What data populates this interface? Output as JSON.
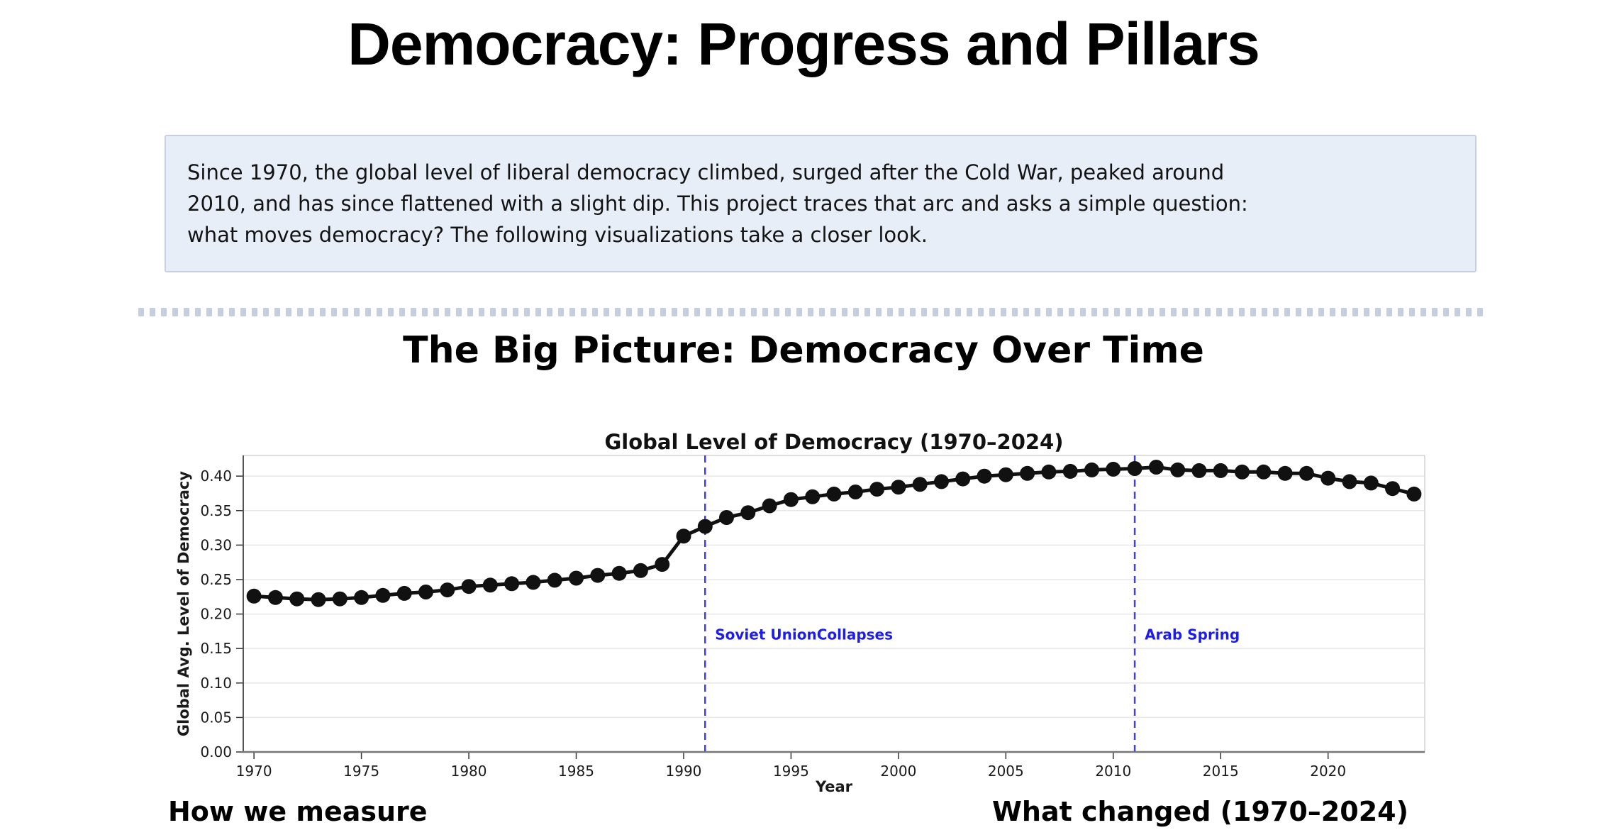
{
  "page": {
    "title": "Democracy: Progress and Pillars"
  },
  "intro": {
    "lines": [
      "Since 1970, the global level of liberal democracy climbed, surged after the Cold War, peaked around",
      "2010, and has since flattened with a slight dip. This project traces that arc and asks a simple question:",
      "what moves democracy? The following visualizations take a closer look."
    ]
  },
  "section": {
    "title": "The Big Picture: Democracy Over Time"
  },
  "chart_data": {
    "type": "line",
    "title": "Global Level of Democracy (1970–2024)",
    "xlabel": "Year",
    "ylabel": "Global Avg. Level of Democracy",
    "xlim": [
      1969.5,
      2024.5
    ],
    "ylim": [
      0,
      0.43
    ],
    "xticks": [
      1970,
      1975,
      1980,
      1985,
      1990,
      1995,
      2000,
      2005,
      2010,
      2015,
      2020
    ],
    "yticks": [
      0.0,
      0.05,
      0.1,
      0.15,
      0.2,
      0.25,
      0.3,
      0.35,
      0.4
    ],
    "grid": "horizontal",
    "legend": "none",
    "years": [
      1970,
      1971,
      1972,
      1973,
      1974,
      1975,
      1976,
      1977,
      1978,
      1979,
      1980,
      1981,
      1982,
      1983,
      1984,
      1985,
      1986,
      1987,
      1988,
      1989,
      1990,
      1991,
      1992,
      1993,
      1994,
      1995,
      1996,
      1997,
      1998,
      1999,
      2000,
      2001,
      2002,
      2003,
      2004,
      2005,
      2006,
      2007,
      2008,
      2009,
      2010,
      2011,
      2012,
      2013,
      2014,
      2015,
      2016,
      2017,
      2018,
      2019,
      2020,
      2021,
      2022,
      2023,
      2024
    ],
    "values": [
      0.226,
      0.224,
      0.222,
      0.221,
      0.222,
      0.224,
      0.227,
      0.23,
      0.232,
      0.235,
      0.24,
      0.242,
      0.244,
      0.246,
      0.249,
      0.252,
      0.256,
      0.259,
      0.263,
      0.272,
      0.313,
      0.327,
      0.34,
      0.347,
      0.357,
      0.366,
      0.37,
      0.374,
      0.377,
      0.381,
      0.384,
      0.388,
      0.392,
      0.396,
      0.4,
      0.402,
      0.404,
      0.406,
      0.407,
      0.409,
      0.41,
      0.411,
      0.413,
      0.409,
      0.408,
      0.408,
      0.406,
      0.406,
      0.404,
      0.404,
      0.397,
      0.392,
      0.39,
      0.382,
      0.374
    ],
    "events": [
      {
        "year": 1991,
        "label": "Soviet UnionCollapses"
      },
      {
        "year": 2011,
        "label": "Arab Spring"
      }
    ],
    "annotation_y": 0.17,
    "colors": {
      "line": "#111111",
      "marker": "#111111",
      "grid": "#e7e7e7",
      "frame": "#d4d4d4",
      "axis": "#777777",
      "tick": "#333333",
      "tick_label": "#1a1a1a",
      "event_line": "#4040e8",
      "event_text": "#1c1cef"
    }
  },
  "footer": {
    "left_heading": "How we measure",
    "right_heading": "What changed (1970–2024)"
  }
}
